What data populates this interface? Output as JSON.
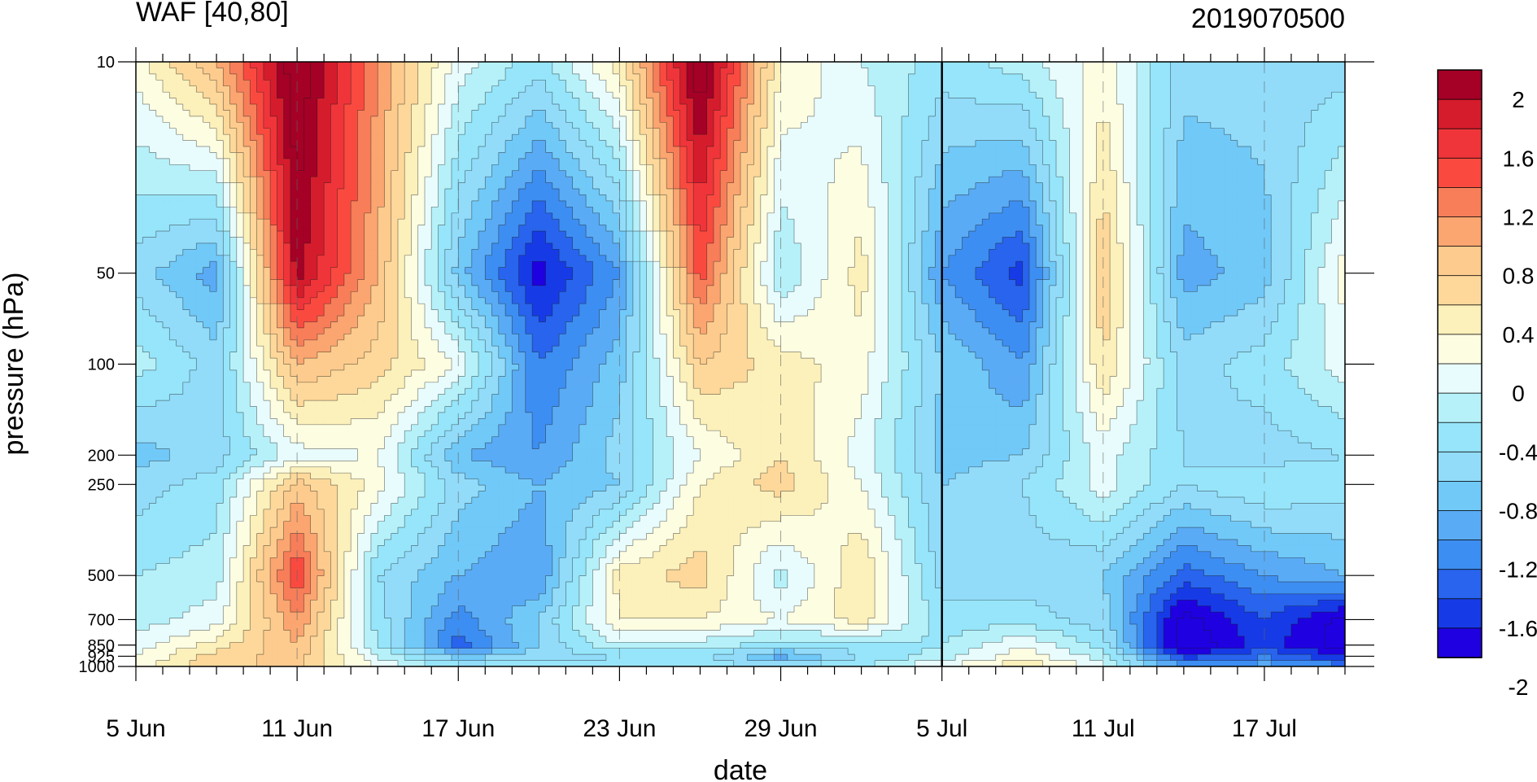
{
  "chart_data": {
    "type": "heatmap",
    "plot_kind": "filled contour (time-pressure cross-section)",
    "title": "WAF [40,80]",
    "subtitle": "2019070500",
    "xlabel": "date",
    "ylabel": "pressure (hPa)",
    "x_ticks": [
      "5 Jun",
      "11 Jun",
      "17 Jun",
      "23 Jun",
      "29 Jun",
      "5 Jul",
      "11 Jul",
      "17 Jul"
    ],
    "x_tick_day_offsets": [
      0,
      6,
      12,
      18,
      24,
      30,
      36,
      42
    ],
    "x_range_days": [
      0,
      45
    ],
    "y_ticks": [
      "10",
      "50",
      "100",
      "200",
      "250",
      "500",
      "700",
      "850",
      "925",
      "1000"
    ],
    "y_tick_values": [
      10,
      50,
      100,
      200,
      250,
      500,
      700,
      850,
      925,
      1000
    ],
    "y_scale": "log",
    "y_range": [
      1000,
      10
    ],
    "vertical_marker_date": "5 Jul",
    "colorbar": {
      "labels": [
        "2",
        "1.6",
        "1.2",
        "0.8",
        "0.4",
        "0",
        "-0.4",
        "-0.8",
        "-1.2",
        "-1.6",
        "-2"
      ],
      "levels": [
        2.2,
        2.0,
        1.8,
        1.6,
        1.4,
        1.2,
        1.0,
        0.8,
        0.6,
        0.4,
        0.2,
        0.0,
        -0.2,
        -0.4,
        -0.6,
        -0.8,
        -1.0,
        -1.2,
        -1.4,
        -1.6,
        -1.8,
        -2.0,
        -2.2
      ],
      "colors": [
        "#a50026",
        "#d51c2c",
        "#f0353a",
        "#fa4a40",
        "#f77e59",
        "#fba570",
        "#fdcb8d",
        "#fdd89a",
        "#fcf0bb",
        "#fdfde2",
        "#e8fcfd",
        "#b6f1f9",
        "#96e5fa",
        "#92dcfa",
        "#71c9f8",
        "#5aabf5",
        "#3d8ef2",
        "#2864ed",
        "#163be6",
        "#1f00e1"
      ]
    },
    "grid": {
      "days": [
        0,
        3,
        6,
        9,
        12,
        15,
        18,
        21,
        24,
        27,
        30,
        33,
        36,
        39,
        42,
        45
      ],
      "levels": [
        10,
        50,
        100,
        200,
        250,
        500,
        700,
        850,
        925,
        1000
      ],
      "values": [
        [
          0.3,
          1.0,
          2.4,
          1.2,
          0.1,
          -0.3,
          0.5,
          2.4,
          0.4,
          0.0,
          -0.3,
          -0.1,
          0.3,
          -0.5,
          -0.5,
          -0.5
        ],
        [
          -0.5,
          -0.9,
          2.1,
          1.0,
          -0.7,
          -1.7,
          -1.0,
          1.5,
          -0.2,
          0.5,
          -1.0,
          -1.5,
          0.8,
          -0.9,
          -0.7,
          0.3
        ],
        [
          -0.1,
          -0.5,
          1.0,
          0.7,
          0.2,
          -1.2,
          -0.7,
          0.8,
          0.5,
          0.3,
          -0.6,
          -1.0,
          0.6,
          -0.5,
          -0.3,
          0.1
        ],
        [
          -0.7,
          -0.5,
          0.1,
          0.2,
          -0.8,
          -1.0,
          -0.5,
          0.2,
          0.6,
          0.1,
          -0.7,
          -0.6,
          0.1,
          -0.4,
          -0.5,
          -0.4
        ],
        [
          -0.5,
          -0.3,
          0.9,
          0.3,
          -0.5,
          -0.8,
          -0.6,
          0.4,
          0.7,
          0.2,
          -0.6,
          -0.4,
          0.1,
          -0.4,
          -0.2,
          -0.3
        ],
        [
          -0.2,
          -0.1,
          1.6,
          -0.4,
          -0.8,
          -1.0,
          0.5,
          0.7,
          -0.1,
          0.6,
          -0.5,
          -0.5,
          -0.6,
          -1.3,
          -1.0,
          -0.8
        ],
        [
          -0.1,
          0.1,
          1.2,
          -0.3,
          -1.1,
          -0.6,
          0.4,
          0.4,
          0.2,
          0.5,
          -0.3,
          -0.3,
          -0.5,
          -1.9,
          -1.4,
          -1.9
        ],
        [
          0.1,
          0.5,
          1.0,
          -0.2,
          -1.3,
          -0.6,
          0.0,
          -0.1,
          -0.3,
          -0.3,
          -0.2,
          0.2,
          -0.3,
          -2.0,
          -1.5,
          -1.9
        ],
        [
          0.2,
          0.7,
          0.9,
          0.0,
          -0.7,
          -0.5,
          -0.4,
          -0.3,
          -0.9,
          -0.4,
          -0.1,
          0.3,
          -0.1,
          -1.5,
          -1.2,
          -1.6
        ],
        [
          0.3,
          0.8,
          0.8,
          0.2,
          -0.3,
          -0.3,
          -0.3,
          -0.3,
          -0.4,
          -0.2,
          0.2,
          0.6,
          0.1,
          -1.0,
          -0.9,
          -1.1
        ]
      ]
    }
  }
}
